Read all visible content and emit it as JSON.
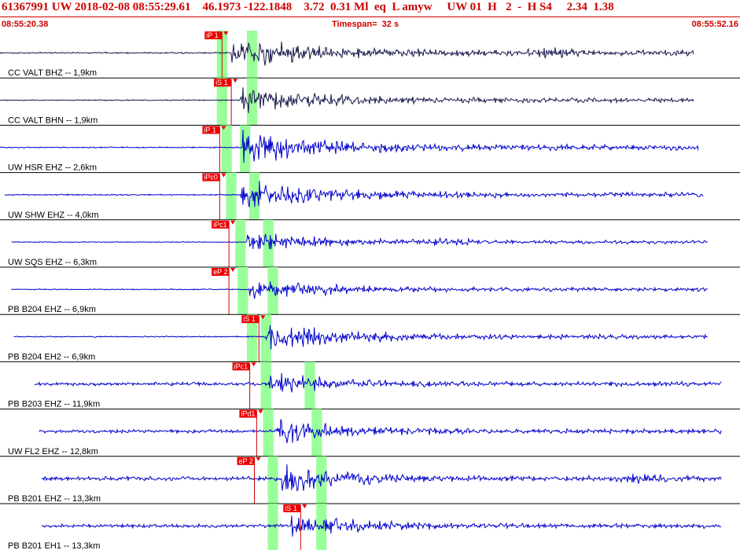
{
  "header": {
    "title": "61367991 UW 2018-02-08 08:55:29.61    46.1973 -122.1848    3.72  0.31 Ml  eq  L amyw     UW 01  H   2  -  H S4     2.34  1.38",
    "start_time": "08:55:20.38",
    "timespan": "Timespan=  32 s",
    "end_time": "08:55:52.16"
  },
  "colors": {
    "header_text": "#cc0000",
    "trace_bhz": "#1a1a4d",
    "trace": "#0000cc",
    "pick_line": "#cc0000",
    "pick_flag": "#ee0000",
    "window_band": "#99ff99",
    "separator": "#000000"
  },
  "chart_data": {
    "type": "line",
    "title": "",
    "time_range_s": [
      0,
      32
    ],
    "grid": false,
    "traces": [
      {
        "station": "CC VALT BHZ -- 1,9km",
        "color_key": "trace_bhz",
        "picks": [
          {
            "label": "iP 1",
            "t": 9.6
          }
        ],
        "windows": [
          {
            "t": 9.6,
            "w": 0.45
          },
          {
            "t": 10.9,
            "w": 0.45
          }
        ],
        "onset": 10.0,
        "amplitude": 1.0,
        "coda_bump": 24.0,
        "start_t": 0.0,
        "end_t": 30.0
      },
      {
        "station": "CC VALT BHN -- 1,9km",
        "color_key": "trace_bhz",
        "picks": [
          {
            "label": "iS 1",
            "t": 10.0
          }
        ],
        "windows": [
          {
            "t": 9.6,
            "w": 0.45
          },
          {
            "t": 10.9,
            "w": 0.45
          }
        ],
        "onset": 10.4,
        "amplitude": 0.8,
        "coda_bump": 0,
        "start_t": 0.0,
        "end_t": 30.0
      },
      {
        "station": "UW HSR EHZ -- 2,6km",
        "color_key": "trace",
        "picks": [
          {
            "label": "iP 1",
            "t": 9.5
          }
        ],
        "windows": [
          {
            "t": 9.8,
            "w": 0.45
          },
          {
            "t": 10.6,
            "w": 0.45
          }
        ],
        "onset": 10.5,
        "amplitude": 1.0,
        "coda_bump": 0,
        "start_t": 0.0,
        "end_t": 30.2
      },
      {
        "station": "UW SHW EHZ -- 4,0km",
        "color_key": "trace",
        "picks": [
          {
            "label": "iPc0",
            "t": 9.5
          }
        ],
        "windows": [
          {
            "t": 10.0,
            "w": 0.45
          },
          {
            "t": 11.0,
            "w": 0.45
          }
        ],
        "onset": 10.4,
        "amplitude": 0.9,
        "coda_bump": 0,
        "start_t": 0.2,
        "end_t": 30.4
      },
      {
        "station": "UW SQS EHZ -- 6,3km",
        "color_key": "trace",
        "picks": [
          {
            "label": "iPc1",
            "t": 9.9
          }
        ],
        "windows": [
          {
            "t": 10.4,
            "w": 0.45
          },
          {
            "t": 11.6,
            "w": 0.45
          }
        ],
        "onset": 10.6,
        "amplitude": 0.6,
        "coda_bump": 19.5,
        "start_t": 0.5,
        "end_t": 30.6
      },
      {
        "station": "PB B204 EHZ -- 6,9km",
        "color_key": "trace",
        "picks": [
          {
            "label": "eP 2",
            "t": 9.9
          }
        ],
        "windows": [
          {
            "t": 10.5,
            "w": 0.45
          },
          {
            "t": 11.8,
            "w": 0.45
          }
        ],
        "onset": 10.8,
        "amplitude": 0.7,
        "coda_bump": 0,
        "start_t": 0.5,
        "end_t": 30.6
      },
      {
        "station": "PB B204 EH2 -- 6,9km",
        "color_key": "trace",
        "picks": [
          {
            "label": "iS 1",
            "t": 11.2
          }
        ],
        "windows": [
          {
            "t": 10.9,
            "w": 0.45
          },
          {
            "t": 11.5,
            "w": 0.45
          }
        ],
        "onset": 11.5,
        "amplitude": 0.8,
        "coda_bump": 0,
        "start_t": 0.6,
        "end_t": 30.6
      },
      {
        "station": "PB B203 EHZ -- 11,9km",
        "color_key": "trace",
        "picks": [
          {
            "label": "iPc1",
            "t": 10.8
          }
        ],
        "windows": [
          {
            "t": 11.5,
            "w": 0.45
          },
          {
            "t": 13.4,
            "w": 0.45
          }
        ],
        "onset": 11.6,
        "amplitude": 0.7,
        "coda_bump": 0,
        "start_t": 1.5,
        "end_t": 31.2
      },
      {
        "station": "UW FL2 EHZ -- 12,8km",
        "color_key": "trace",
        "picks": [
          {
            "label": "iPd1",
            "t": 11.1
          }
        ],
        "windows": [
          {
            "t": 11.6,
            "w": 0.45
          },
          {
            "t": 13.7,
            "w": 0.45
          }
        ],
        "onset": 12.0,
        "amplitude": 0.7,
        "coda_bump": 0,
        "start_t": 1.7,
        "end_t": 31.2
      },
      {
        "station": "PB B201 EHZ -- 13,3km",
        "color_key": "trace",
        "picks": [
          {
            "label": "eP 2",
            "t": 11.0
          }
        ],
        "windows": [
          {
            "t": 11.8,
            "w": 0.45
          },
          {
            "t": 13.9,
            "w": 0.45
          }
        ],
        "onset": 12.2,
        "amplitude": 0.8,
        "coda_bump": 27.8,
        "start_t": 1.8,
        "end_t": 31.2
      },
      {
        "station": "PB B201 EH1 -- 13,3km",
        "color_key": "trace",
        "picks": [
          {
            "label": "iS 1",
            "t": 13.0
          }
        ],
        "windows": [
          {
            "t": 11.8,
            "w": 0.45
          },
          {
            "t": 13.9,
            "w": 0.45
          }
        ],
        "onset": 12.6,
        "amplitude": 0.7,
        "coda_bump": 0,
        "start_t": 1.8,
        "end_t": 31.2
      }
    ]
  }
}
